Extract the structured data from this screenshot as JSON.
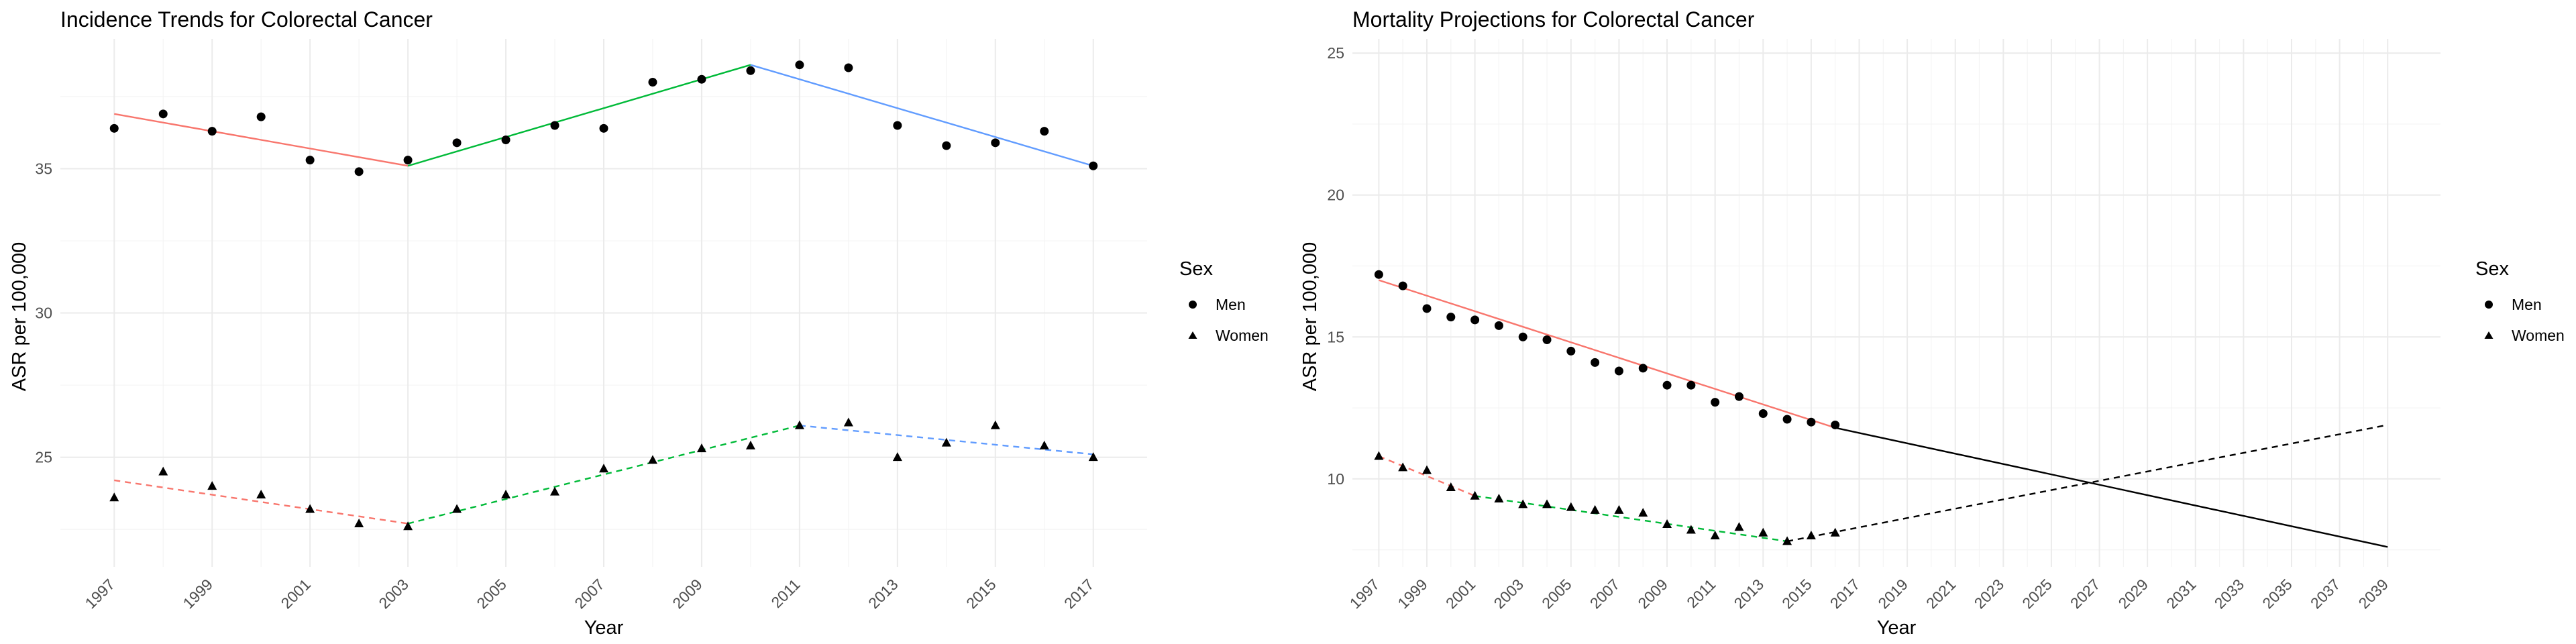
{
  "figure": {
    "panels": [
      {
        "title": "Incidence Trends for Colorectal Cancer",
        "xlabel": "Year",
        "ylabel": "ASR per 100,000",
        "legend_title": "Sex",
        "legend_items": [
          "Men",
          "Women"
        ]
      },
      {
        "title": "Mortality Projections for Colorectal Cancer",
        "xlabel": "Year",
        "ylabel": "ASR per 100,000",
        "legend_title": "Sex",
        "legend_items": [
          "Men",
          "Women"
        ]
      }
    ]
  },
  "colors": {
    "segment1": "#F8766D",
    "segment2": "#00BA38",
    "segment3": "#619CFF",
    "projection": "#000000",
    "points": "#000000",
    "grid": "#EBEBEB",
    "text": "#4D4D4D"
  },
  "chart_data": [
    {
      "type": "scatter",
      "title": "Incidence Trends for Colorectal Cancer",
      "xlabel": "Year",
      "ylabel": "ASR per 100,000",
      "xlim": [
        1995.9,
        2018.1
      ],
      "ylim": [
        21.2,
        39.5
      ],
      "xticks": [
        1997,
        1999,
        2001,
        2003,
        2005,
        2007,
        2009,
        2011,
        2013,
        2015,
        2017
      ],
      "yticks": [
        25,
        30,
        35
      ],
      "grid": true,
      "legend_position": "right",
      "series": [
        {
          "name": "Men",
          "marker": "circle",
          "points": [
            [
              1997,
              36.4
            ],
            [
              1998,
              36.9
            ],
            [
              1999,
              36.3
            ],
            [
              2000,
              36.8
            ],
            [
              2001,
              35.3
            ],
            [
              2002,
              34.9
            ],
            [
              2003,
              35.3
            ],
            [
              2004,
              35.9
            ],
            [
              2005,
              36.0
            ],
            [
              2006,
              36.5
            ],
            [
              2007,
              36.4
            ],
            [
              2008,
              38.0
            ],
            [
              2009,
              38.1
            ],
            [
              2010,
              38.4
            ],
            [
              2011,
              38.6
            ],
            [
              2012,
              38.5
            ],
            [
              2013,
              36.5
            ],
            [
              2014,
              35.8
            ],
            [
              2015,
              35.9
            ],
            [
              2016,
              36.3
            ],
            [
              2017,
              35.1
            ]
          ],
          "fit_segments": [
            {
              "color_key": "segment1",
              "dash": false,
              "points": [
                [
                  1997,
                  36.9
                ],
                [
                  2003,
                  35.1
                ]
              ]
            },
            {
              "color_key": "segment2",
              "dash": false,
              "points": [
                [
                  2003,
                  35.1
                ],
                [
                  2010,
                  38.6
                ]
              ]
            },
            {
              "color_key": "segment3",
              "dash": false,
              "points": [
                [
                  2010,
                  38.6
                ],
                [
                  2017,
                  35.1
                ]
              ]
            }
          ]
        },
        {
          "name": "Women",
          "marker": "triangle",
          "points": [
            [
              1997,
              23.6
            ],
            [
              1998,
              24.5
            ],
            [
              1999,
              24.0
            ],
            [
              2000,
              23.7
            ],
            [
              2001,
              23.2
            ],
            [
              2002,
              22.7
            ],
            [
              2003,
              22.6
            ],
            [
              2004,
              23.2
            ],
            [
              2005,
              23.7
            ],
            [
              2006,
              23.8
            ],
            [
              2007,
              24.6
            ],
            [
              2008,
              24.9
            ],
            [
              2009,
              25.3
            ],
            [
              2010,
              25.4
            ],
            [
              2011,
              26.1
            ],
            [
              2012,
              26.2
            ],
            [
              2013,
              25.0
            ],
            [
              2014,
              25.5
            ],
            [
              2015,
              26.1
            ],
            [
              2016,
              25.4
            ],
            [
              2017,
              25.0
            ]
          ],
          "fit_segments": [
            {
              "color_key": "segment1",
              "dash": true,
              "points": [
                [
                  1997,
                  24.2
                ],
                [
                  2003,
                  22.7
                ]
              ]
            },
            {
              "color_key": "segment2",
              "dash": true,
              "points": [
                [
                  2003,
                  22.7
                ],
                [
                  2011,
                  26.1
                ]
              ]
            },
            {
              "color_key": "segment3",
              "dash": true,
              "points": [
                [
                  2011,
                  26.1
                ],
                [
                  2017,
                  25.1
                ]
              ]
            }
          ]
        }
      ]
    },
    {
      "type": "scatter",
      "title": "Mortality Projections for Colorectal Cancer",
      "xlabel": "Year",
      "ylabel": "ASR per 100,000",
      "xlim": [
        1995.9,
        2041.2
      ],
      "ylim": [
        6.9,
        25.5
      ],
      "xticks": [
        1997,
        1999,
        2001,
        2003,
        2005,
        2007,
        2009,
        2011,
        2013,
        2015,
        2017,
        2019,
        2021,
        2023,
        2025,
        2027,
        2029,
        2031,
        2033,
        2035,
        2037,
        2039
      ],
      "yticks": [
        10,
        15,
        20,
        25
      ],
      "grid": true,
      "legend_position": "right",
      "series": [
        {
          "name": "Men",
          "marker": "circle",
          "points": [
            [
              1997,
              17.2
            ],
            [
              1998,
              16.8
            ],
            [
              1999,
              16.0
            ],
            [
              2000,
              15.7
            ],
            [
              2001,
              15.6
            ],
            [
              2002,
              15.4
            ],
            [
              2003,
              15.0
            ],
            [
              2004,
              14.9
            ],
            [
              2005,
              14.5
            ],
            [
              2006,
              14.1
            ],
            [
              2007,
              13.8
            ],
            [
              2008,
              13.9
            ],
            [
              2009,
              13.3
            ],
            [
              2010,
              13.3
            ],
            [
              2011,
              12.7
            ],
            [
              2012,
              12.9
            ],
            [
              2013,
              12.3
            ],
            [
              2014,
              12.1
            ],
            [
              2015,
              12.0
            ],
            [
              2016,
              11.9
            ]
          ],
          "fit_segments": [
            {
              "color_key": "segment1",
              "dash": false,
              "points": [
                [
                  1997,
                  17.0
                ],
                [
                  2016,
                  11.8
                ]
              ]
            },
            {
              "color_key": "projection",
              "dash": false,
              "points": [
                [
                  2016,
                  11.8
                ],
                [
                  2039,
                  7.6
                ]
              ]
            }
          ]
        },
        {
          "name": "Women",
          "marker": "triangle",
          "points": [
            [
              1997,
              10.8
            ],
            [
              1998,
              10.4
            ],
            [
              1999,
              10.3
            ],
            [
              2000,
              9.7
            ],
            [
              2001,
              9.4
            ],
            [
              2002,
              9.3
            ],
            [
              2003,
              9.1
            ],
            [
              2004,
              9.1
            ],
            [
              2005,
              9.0
            ],
            [
              2006,
              8.9
            ],
            [
              2007,
              8.9
            ],
            [
              2008,
              8.8
            ],
            [
              2009,
              8.4
            ],
            [
              2010,
              8.2
            ],
            [
              2011,
              8.0
            ],
            [
              2012,
              8.3
            ],
            [
              2013,
              8.1
            ],
            [
              2014,
              7.8
            ],
            [
              2015,
              8.0
            ],
            [
              2016,
              8.1
            ]
          ],
          "fit_segments": [
            {
              "color_key": "segment1",
              "dash": true,
              "points": [
                [
                  1997,
                  10.8
                ],
                [
                  2001,
                  9.4
                ]
              ]
            },
            {
              "color_key": "segment2",
              "dash": true,
              "points": [
                [
                  2001,
                  9.4
                ],
                [
                  2014,
                  7.8
                ]
              ]
            },
            {
              "color_key": "projection",
              "dash": true,
              "points": [
                [
                  2014,
                  7.8
                ],
                [
                  2039,
                  11.9
                ]
              ]
            }
          ]
        }
      ]
    }
  ]
}
